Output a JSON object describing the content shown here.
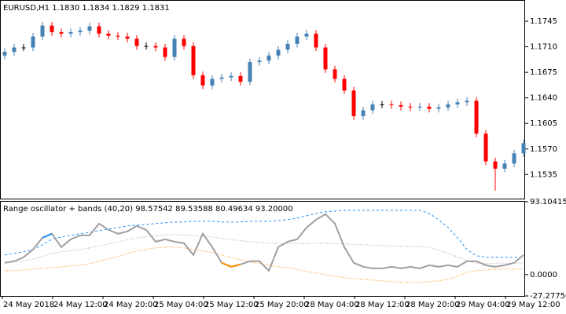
{
  "chart_data": [
    {
      "type": "candlestick",
      "title": "EURUSD,H1  1.1830 1.1834 1.1829 1.1831",
      "up_color": "#4682b4",
      "down_color": "#ff0000",
      "doji_color": "#000000",
      "open": [
        1.1698,
        1.1703,
        1.1709,
        1.1709,
        1.1724,
        1.1739,
        1.173,
        1.1728,
        1.173,
        1.1732,
        1.1738,
        1.1728,
        1.1725,
        1.1724,
        1.1721,
        1.1711,
        1.1711,
        1.1709,
        1.1696,
        1.1721,
        1.1711,
        1.1671,
        1.1657,
        1.1666,
        1.1668,
        1.167,
        1.1662,
        1.1689,
        1.1691,
        1.1698,
        1.1706,
        1.1714,
        1.1724,
        1.1728,
        1.1709,
        1.1679,
        1.1666,
        1.165,
        1.1615,
        1.1623,
        1.1631,
        1.1631,
        1.163,
        1.1628,
        1.1627,
        1.1628,
        1.1625,
        1.1627,
        1.1631,
        1.1634,
        1.1636,
        1.1591,
        1.1553,
        1.1543,
        1.155,
        1.1564
      ],
      "high": [
        1.1708,
        1.1714,
        1.1714,
        1.1729,
        1.1744,
        1.1744,
        1.1735,
        1.1735,
        1.1737,
        1.1743,
        1.1743,
        1.1733,
        1.173,
        1.1729,
        1.1726,
        1.1716,
        1.1716,
        1.1714,
        1.1726,
        1.1726,
        1.1716,
        1.1676,
        1.1671,
        1.1673,
        1.1675,
        1.1675,
        1.1694,
        1.1696,
        1.1703,
        1.1711,
        1.1719,
        1.1729,
        1.1733,
        1.1733,
        1.1714,
        1.1684,
        1.1671,
        1.1655,
        1.1628,
        1.1636,
        1.1636,
        1.1636,
        1.1635,
        1.1633,
        1.1633,
        1.1633,
        1.1632,
        1.1636,
        1.1639,
        1.1641,
        1.1641,
        1.1596,
        1.1558,
        1.1555,
        1.1569,
        1.1583
      ],
      "low": [
        1.1693,
        1.1698,
        1.1704,
        1.1704,
        1.1719,
        1.1725,
        1.1723,
        1.1723,
        1.1725,
        1.1727,
        1.1723,
        1.172,
        1.1719,
        1.1716,
        1.1706,
        1.1706,
        1.1704,
        1.1691,
        1.1691,
        1.1706,
        1.1666,
        1.1652,
        1.1652,
        1.1661,
        1.1663,
        1.1657,
        1.1657,
        1.1684,
        1.1686,
        1.1693,
        1.1701,
        1.1709,
        1.1719,
        1.1704,
        1.1674,
        1.1661,
        1.1645,
        1.161,
        1.161,
        1.1618,
        1.1626,
        1.1625,
        1.1623,
        1.1622,
        1.1622,
        1.162,
        1.162,
        1.1622,
        1.1626,
        1.1629,
        1.1586,
        1.1548,
        1.1513,
        1.1538,
        1.1545,
        1.1559
      ],
      "close": [
        1.1703,
        1.1709,
        1.1709,
        1.1724,
        1.1739,
        1.173,
        1.1728,
        1.173,
        1.1732,
        1.1738,
        1.1728,
        1.1725,
        1.1724,
        1.1721,
        1.1711,
        1.1711,
        1.1709,
        1.1696,
        1.1721,
        1.1711,
        1.1671,
        1.1657,
        1.1666,
        1.1668,
        1.167,
        1.1662,
        1.1689,
        1.1691,
        1.1698,
        1.1706,
        1.1714,
        1.1724,
        1.1728,
        1.1709,
        1.1679,
        1.1666,
        1.165,
        1.1615,
        1.1623,
        1.1631,
        1.1631,
        1.163,
        1.1628,
        1.1627,
        1.1628,
        1.1625,
        1.1627,
        1.1631,
        1.1634,
        1.1636,
        1.1591,
        1.1553,
        1.1543,
        1.155,
        1.1564,
        1.1578
      ],
      "ylim": [
        1.1502,
        1.1773
      ],
      "yticks": [
        1.1745,
        {
          "value": 1.171,
          "label": "1.1710"
        },
        1.1675,
        {
          "value": 1.164,
          "label": "1.1640"
        },
        1.1605,
        {
          "value": 1.157,
          "label": "1.1570"
        },
        1.1535
      ]
    },
    {
      "type": "line",
      "title": "Range oscillator + bands (40,20) 98.57542 89.53588 80.49634 93.20000",
      "above_color": "#1e90ff",
      "below_color": "#ff8c00",
      "series": [
        {
          "color": "#ff8c00",
          "dash": "dotted",
          "values": [
            5.0,
            5.0,
            6.0,
            7.0,
            8.0,
            9.0,
            10.0,
            11.0,
            12.0,
            14.0,
            17.1,
            20.1,
            23.1,
            27.1,
            30.1,
            32.1,
            34.1,
            35.1,
            35.1,
            34.1,
            32.1,
            30.1,
            28.1,
            25.1,
            22.1,
            19.1,
            16.0,
            14.0,
            12.0,
            10.0,
            9.0,
            7.0,
            4.0,
            2.0,
            0.0,
            -2.0,
            -4.0,
            -5.0,
            -6.0,
            -7.0,
            -8.0,
            -9.0,
            -10.0,
            -10.0,
            -10.0,
            -9.0,
            -8.0,
            -6.0,
            -2.0,
            3.0,
            5.0,
            6.0,
            7.0,
            7.0,
            7.0,
            7.0
          ]
        },
        {
          "color": "#b4a09a",
          "dash": "dotted",
          "values": [
            15.1,
            16.1,
            17.6,
            19.6,
            23.1,
            27.1,
            29.1,
            30.6,
            32.1,
            34.1,
            36.7,
            39.2,
            41.7,
            44.7,
            46.7,
            48.2,
            49.7,
            50.7,
            51.2,
            50.7,
            50.2,
            49.2,
            48.2,
            46.2,
            44.7,
            43.2,
            42.1,
            41.1,
            40.1,
            39.6,
            39.6,
            39.6,
            39.6,
            40.1,
            40.1,
            39.6,
            39.1,
            38.6,
            38.1,
            37.6,
            37.1,
            36.6,
            36.1,
            36.1,
            36.1,
            34.6,
            31.1,
            27.1,
            22.6,
            17.6,
            14.6,
            14.1,
            14.6,
            14.6,
            14.6,
            14.6
          ]
        },
        {
          "color": "#1e90ff",
          "dash": "dashed",
          "values": [
            25.1,
            27.1,
            29.1,
            32.1,
            38.1,
            45.1,
            48.1,
            50.2,
            52.2,
            54.2,
            56.2,
            58.2,
            60.2,
            62.2,
            63.2,
            64.2,
            65.2,
            66.2,
            67.2,
            67.2,
            68.2,
            68.2,
            68.2,
            67.2,
            67.2,
            67.2,
            68.2,
            68.2,
            68.2,
            69.2,
            70.2,
            72.2,
            75.2,
            78.2,
            80.2,
            81.2,
            82.2,
            82.2,
            82.2,
            82.2,
            82.2,
            82.2,
            82.2,
            82.2,
            82.2,
            78.2,
            70.2,
            60.2,
            47.1,
            32.1,
            24.1,
            22.1,
            22.1,
            22.1,
            22.1,
            22.1
          ]
        },
        {
          "color": "#a0a0a0",
          "dash": "solid",
          "values": [
            15.0,
            17.1,
            22.1,
            32.1,
            47.1,
            52.2,
            35.1,
            45.1,
            50.2,
            50.2,
            65.2,
            57.2,
            52.2,
            55.2,
            62.2,
            57.2,
            42.1,
            45.1,
            42.1,
            40.1,
            25.1,
            52.2,
            35.1,
            15.0,
            10.0,
            13.0,
            17.1,
            17.1,
            5.0,
            35.1,
            42.1,
            45.1,
            60.2,
            70.2,
            77.2,
            65.2,
            35.1,
            15.0,
            10.0,
            8.0,
            8.0,
            10.0,
            8.0,
            10.0,
            8.0,
            12.0,
            10.0,
            12.0,
            10.0,
            17.1,
            17.1,
            12.0,
            10.0,
            12.0,
            15.0,
            25.1
          ]
        }
      ],
      "ylim": [
        -27.2775,
        93.10415
      ],
      "yticks": [
        93.10415,
        {
          "value": 0,
          "label": "0.0000"
        },
        {
          "value": -27.2775,
          "label": "-27.27750"
        }
      ],
      "x_labels": [
        "24 May 2018",
        "24 May 12:00",
        "24 May 20:00",
        "25 May 04:00",
        "25 May 12:00",
        "25 May 20:00",
        "28 May 04:00",
        "28 May 12:00",
        "28 May 20:00",
        "29 May 04:00",
        "29 May 12:00"
      ]
    }
  ]
}
